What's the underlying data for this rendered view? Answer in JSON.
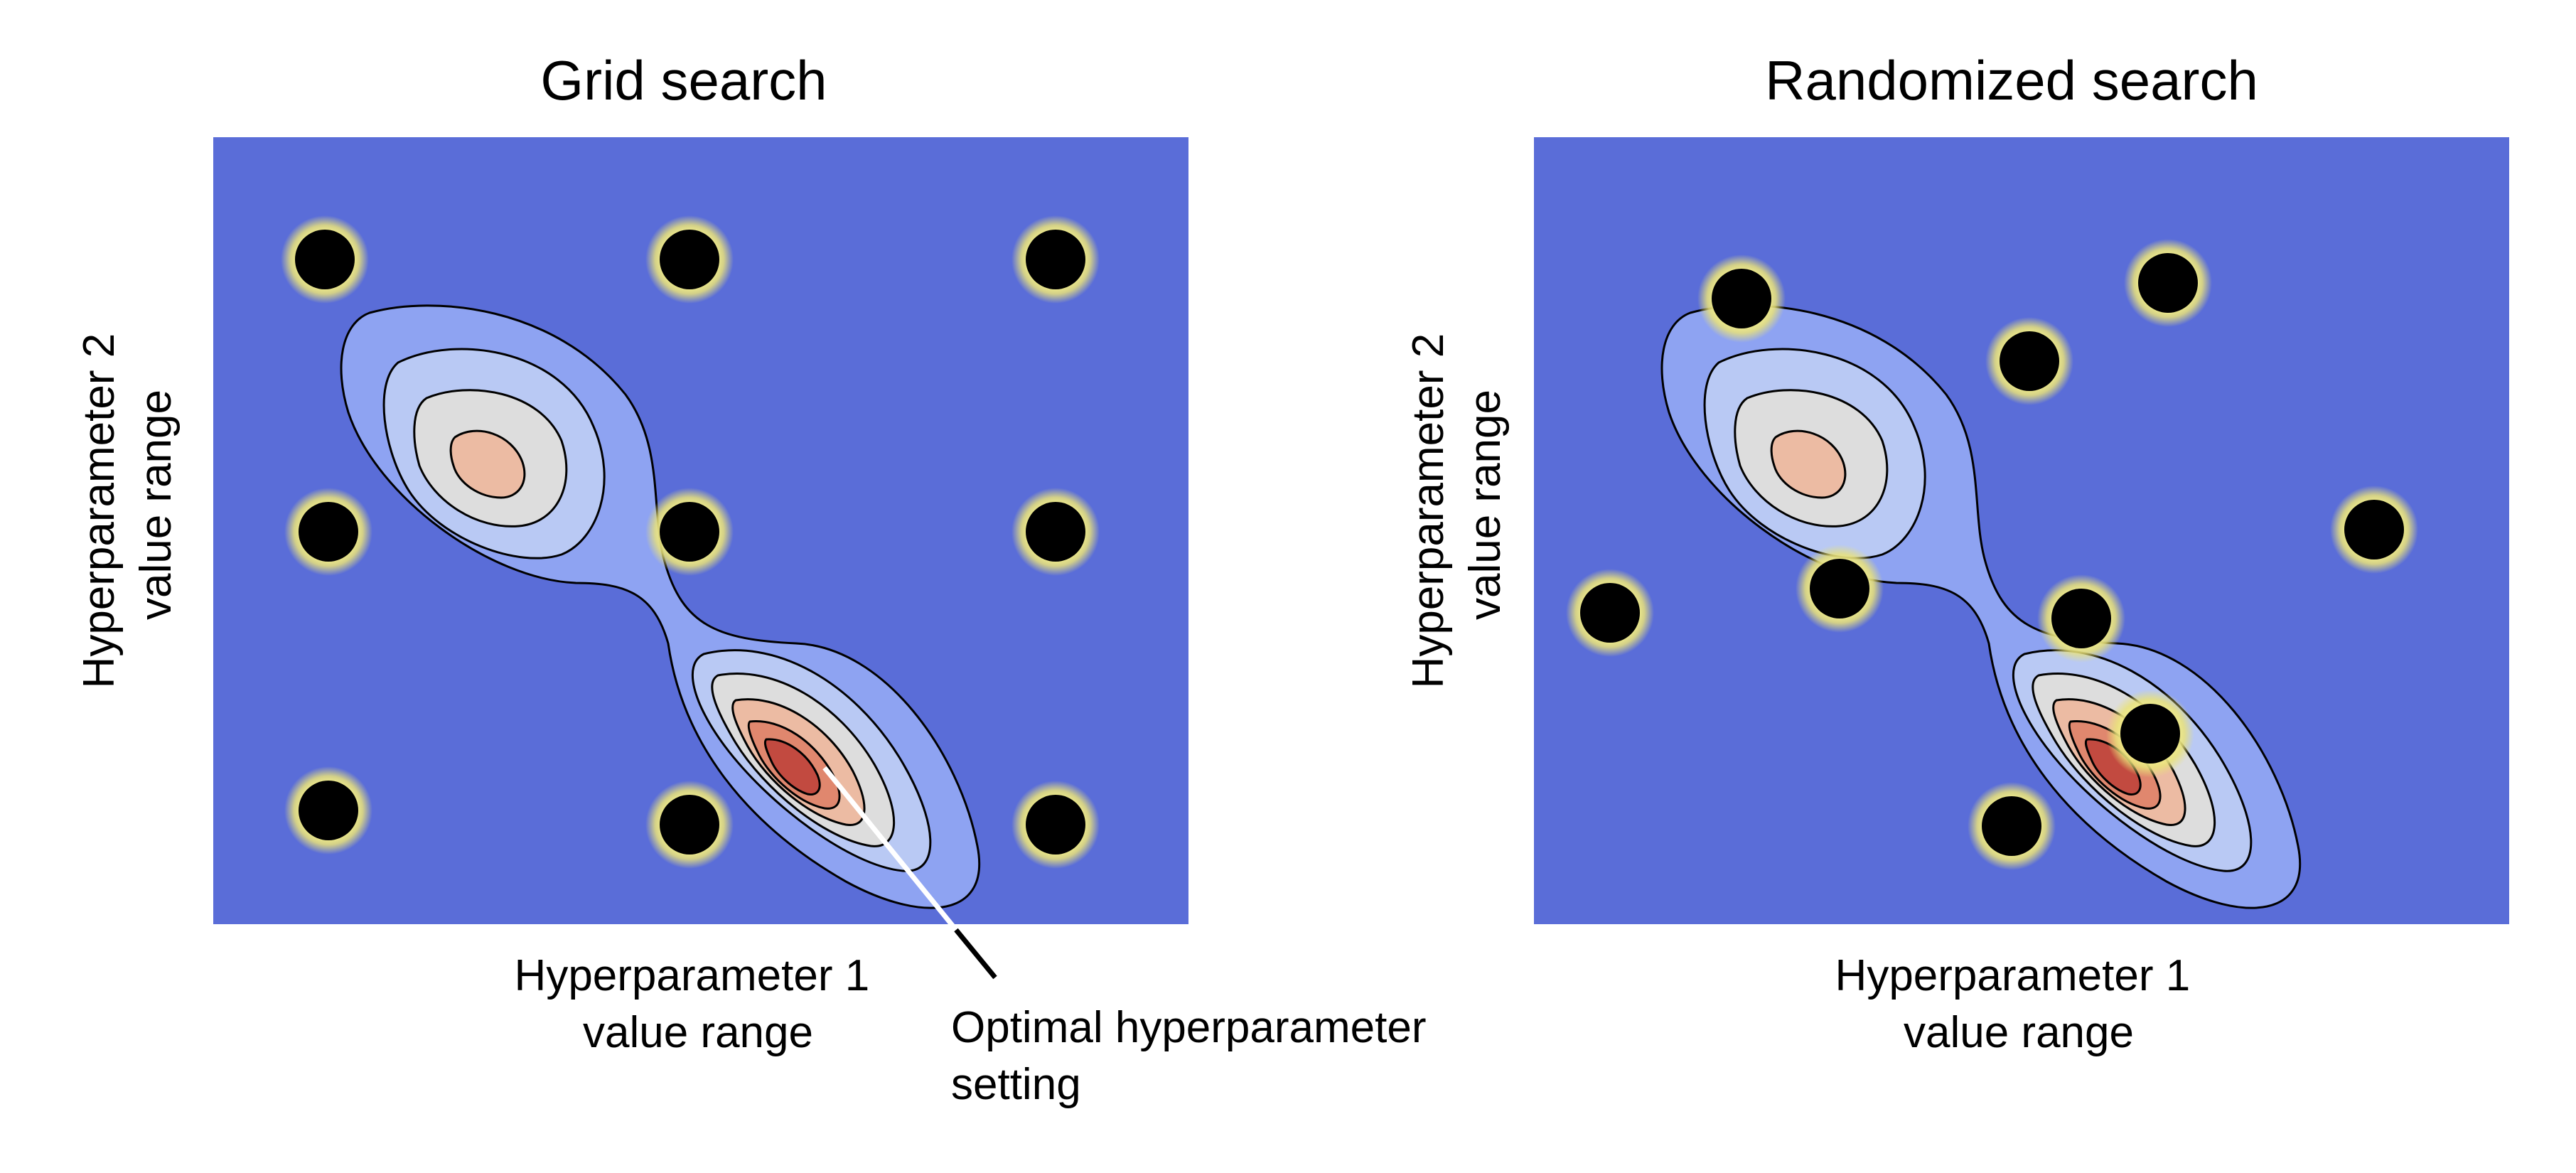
{
  "colors": {
    "background_field": "#5a6dd8",
    "contour_levels": [
      "#8ea3f2",
      "#b9c9f4",
      "#dddddd",
      "#ecbba3",
      "#e0876e",
      "#c24a40"
    ],
    "point": "#000000",
    "point_glow": "#f3ef8c",
    "pointer": "#ffffff"
  },
  "panels": [
    {
      "title": "Grid search",
      "ylabel": [
        "Hyperparameter 2",
        "value range"
      ],
      "xlabel": [
        "Hyperparameter 1",
        "value range"
      ],
      "point_names": [
        "grid-point-r1c1",
        "grid-point-r1c2",
        "grid-point-r1c3",
        "grid-point-r2c1",
        "grid-point-r2c2",
        "grid-point-r2c3",
        "grid-point-r3c1",
        "grid-point-r3c2",
        "grid-point-r3c3"
      ]
    },
    {
      "title": "Randomized search",
      "ylabel": [
        "Hyperparameter 2",
        "value range"
      ],
      "xlabel": [
        "Hyperparameter 1",
        "value range"
      ],
      "point_names": [
        "random-point-1",
        "random-point-2",
        "random-point-3",
        "random-point-4",
        "random-point-5",
        "random-point-6",
        "random-point-7",
        "random-point-8",
        "random-point-9"
      ]
    }
  ],
  "annotation": {
    "lines": [
      "Optimal hyperparameter",
      "setting"
    ]
  }
}
